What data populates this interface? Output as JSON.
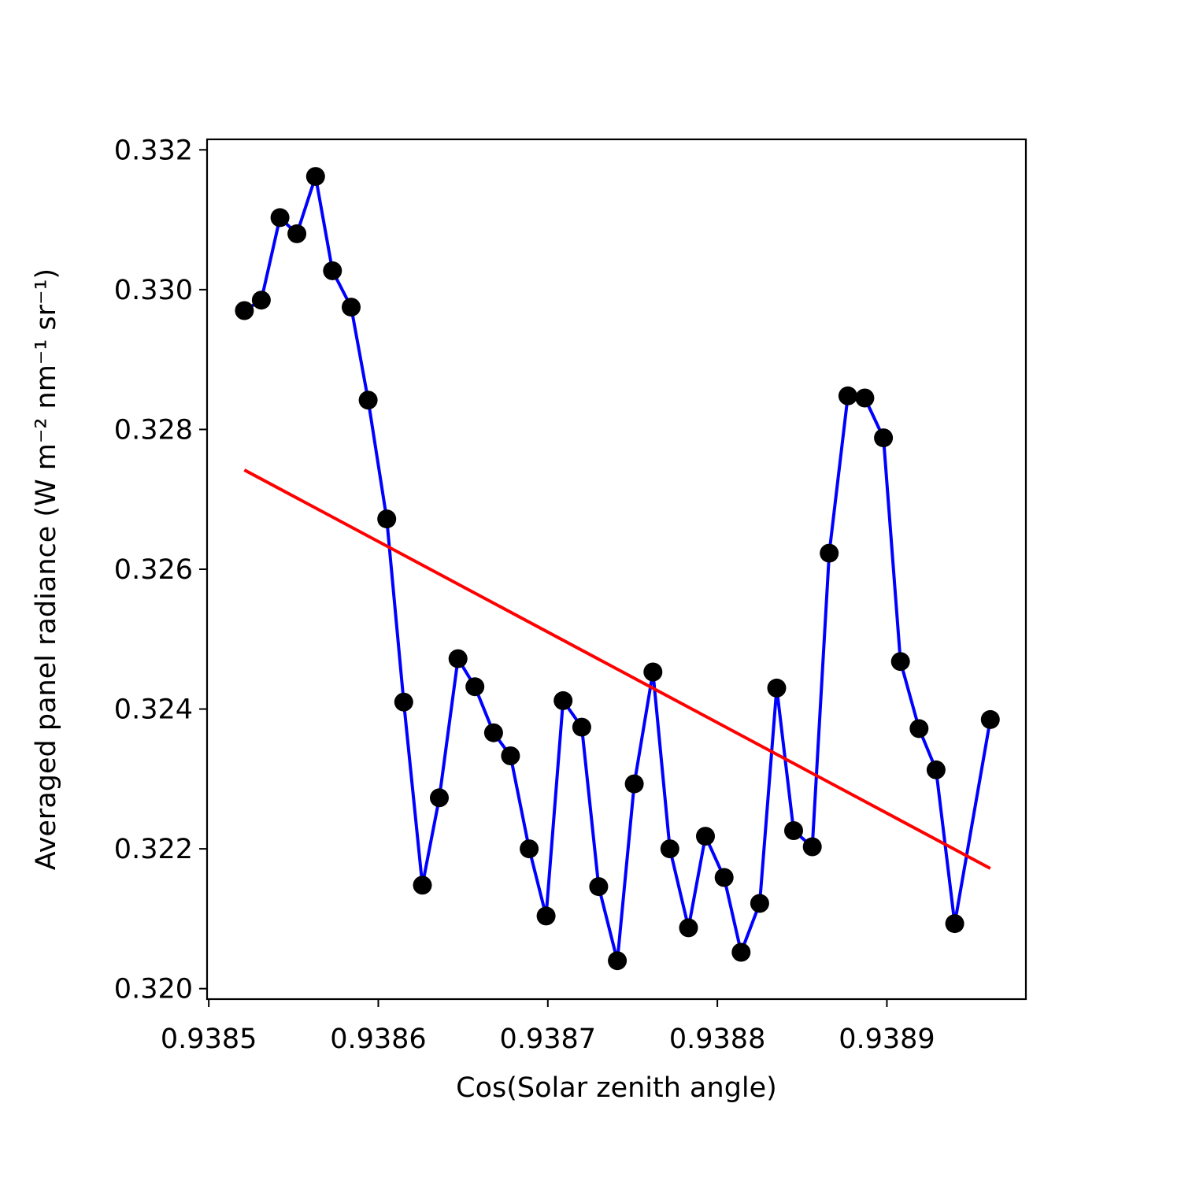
{
  "chart_data": {
    "type": "scatter",
    "xlabel": "Cos(Solar zenith angle)",
    "ylabel": "Averaged panel radiance (W m⁻² nm⁻¹ sr⁻¹)",
    "xlim": [
      0.938499,
      0.938982
    ],
    "ylim": [
      0.31985,
      0.33215
    ],
    "x_ticks": [
      {
        "value": 0.9385,
        "label": "0.9385"
      },
      {
        "value": 0.9386,
        "label": "0.9386"
      },
      {
        "value": 0.9387,
        "label": "0.9387"
      },
      {
        "value": 0.9388,
        "label": "0.9388"
      },
      {
        "value": 0.9389,
        "label": "0.9389"
      }
    ],
    "y_ticks": [
      {
        "value": 0.32,
        "label": "0.320"
      },
      {
        "value": 0.322,
        "label": "0.322"
      },
      {
        "value": 0.324,
        "label": "0.324"
      },
      {
        "value": 0.326,
        "label": "0.326"
      },
      {
        "value": 0.328,
        "label": "0.328"
      },
      {
        "value": 0.33,
        "label": "0.330"
      },
      {
        "value": 0.332,
        "label": "0.332"
      }
    ],
    "grid": false,
    "colors": {
      "points": "#000000",
      "line": "#0000ff",
      "fit": "#ff0000"
    },
    "series": [
      {
        "kind": "points+line",
        "x": [
          0.938521,
          0.938531,
          0.938542,
          0.938552,
          0.938563,
          0.938573,
          0.938584,
          0.938594,
          0.938605,
          0.938615,
          0.938626,
          0.938636,
          0.938647,
          0.938657,
          0.938668,
          0.938678,
          0.938689,
          0.938699,
          0.938709,
          0.93872,
          0.93873,
          0.938741,
          0.938751,
          0.938762,
          0.938772,
          0.938783,
          0.938793,
          0.938804,
          0.938814,
          0.938825,
          0.938835,
          0.938845,
          0.938856,
          0.938866,
          0.938877,
          0.938887,
          0.938898,
          0.938908,
          0.938919,
          0.938929,
          0.93894,
          0.938961
        ],
        "y": [
          0.3297,
          0.32985,
          0.33103,
          0.3308,
          0.33162,
          0.33027,
          0.32975,
          0.32842,
          0.32672,
          0.3241,
          0.32148,
          0.32273,
          0.32472,
          0.32432,
          0.32366,
          0.32333,
          0.322,
          0.32104,
          0.32412,
          0.32374,
          0.32146,
          0.3204,
          0.32293,
          0.32453,
          0.322,
          0.32087,
          0.32218,
          0.32159,
          0.32052,
          0.32122,
          0.3243,
          0.32226,
          0.32203,
          0.32623,
          0.32848,
          0.32845,
          0.32788,
          0.32468,
          0.32372,
          0.32313,
          0.32093,
          0.32385
        ]
      },
      {
        "kind": "fit-line",
        "x": [
          0.938521,
          0.938961
        ],
        "y": [
          0.32742,
          0.32172
        ]
      }
    ]
  }
}
